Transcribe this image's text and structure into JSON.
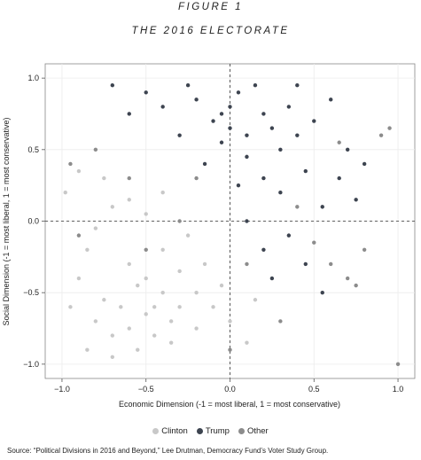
{
  "figure": {
    "label": "FIGURE 1",
    "title": "THE 2016 ELECTORATE",
    "source": "Source: “Political Divisions in 2016 and Beyond,” Lee Drutman, Democracy Fund’s Voter Study Group."
  },
  "chart_data": {
    "type": "scatter",
    "title": "THE 2016 ELECTORATE",
    "xlabel": "Economic Dimension (-1 = most liberal, 1 = most conservative)",
    "ylabel": "Social Dimension (-1 = most liberal, 1 = most conservative)",
    "xlim": [
      -1.1,
      1.1
    ],
    "ylim": [
      -1.1,
      1.1
    ],
    "xticks": [
      -1.0,
      -0.5,
      0.0,
      0.5,
      1.0
    ],
    "yticks": [
      -1.0,
      -0.5,
      0.0,
      0.5,
      1.0
    ],
    "xtick_labels": [
      "−1.0",
      "−0.5",
      "0.0",
      "0.5",
      "1.0"
    ],
    "ytick_labels": [
      "−1.0",
      "−0.5",
      "0.0",
      "0.5",
      "1.0"
    ],
    "reference_lines": {
      "x": 0,
      "y": 0,
      "style": "dashed"
    },
    "grid": true,
    "legend_position": "bottom",
    "series": [
      {
        "name": "Clinton",
        "color": "#c8c8c8",
        "points": [
          [
            -0.85,
            -0.9
          ],
          [
            -0.8,
            -0.7
          ],
          [
            -0.75,
            -0.55
          ],
          [
            -0.7,
            -0.8
          ],
          [
            -0.65,
            -0.6
          ],
          [
            -0.6,
            -0.75
          ],
          [
            -0.55,
            -0.9
          ],
          [
            -0.5,
            -0.65
          ],
          [
            -0.45,
            -0.8
          ],
          [
            -0.4,
            -0.5
          ],
          [
            -0.35,
            -0.7
          ],
          [
            -0.3,
            -0.6
          ],
          [
            -0.9,
            -0.4
          ],
          [
            -0.85,
            -0.2
          ],
          [
            -0.8,
            -0.05
          ],
          [
            -0.7,
            0.1
          ],
          [
            -0.6,
            -0.3
          ],
          [
            -0.5,
            -0.4
          ],
          [
            -0.4,
            -0.2
          ],
          [
            -0.3,
            -0.35
          ],
          [
            -0.2,
            -0.5
          ],
          [
            -0.1,
            -0.6
          ],
          [
            0.0,
            -0.7
          ],
          [
            0.1,
            -0.85
          ],
          [
            -0.95,
            -0.6
          ],
          [
            -0.98,
            0.2
          ],
          [
            -0.9,
            0.35
          ],
          [
            -0.75,
            0.3
          ],
          [
            -0.6,
            0.15
          ],
          [
            -0.5,
            0.05
          ],
          [
            -0.4,
            0.2
          ],
          [
            -0.25,
            -0.1
          ],
          [
            -0.15,
            -0.3
          ],
          [
            -0.05,
            -0.45
          ],
          [
            0.15,
            -0.55
          ],
          [
            -0.7,
            -0.95
          ],
          [
            -0.55,
            -0.45
          ],
          [
            -0.45,
            -0.6
          ],
          [
            -0.35,
            -0.85
          ],
          [
            -0.2,
            -0.75
          ]
        ]
      },
      {
        "name": "Trump",
        "color": "#3d4450",
        "points": [
          [
            0.0,
            0.8
          ],
          [
            0.1,
            0.6
          ],
          [
            0.2,
            0.75
          ],
          [
            0.3,
            0.5
          ],
          [
            0.05,
            0.9
          ],
          [
            -0.1,
            0.7
          ],
          [
            -0.2,
            0.85
          ],
          [
            0.15,
            0.95
          ],
          [
            0.25,
            0.65
          ],
          [
            0.35,
            0.8
          ],
          [
            -0.05,
            0.55
          ],
          [
            0.1,
            0.45
          ],
          [
            0.4,
            0.6
          ],
          [
            0.5,
            0.7
          ],
          [
            -0.3,
            0.6
          ],
          [
            -0.4,
            0.8
          ],
          [
            -0.5,
            0.9
          ],
          [
            0.6,
            0.85
          ],
          [
            0.2,
            0.3
          ],
          [
            0.3,
            0.2
          ],
          [
            0.45,
            0.35
          ],
          [
            0.55,
            0.1
          ],
          [
            0.05,
            0.25
          ],
          [
            -0.15,
            0.4
          ],
          [
            0.7,
            0.5
          ],
          [
            0.8,
            0.4
          ],
          [
            0.35,
            -0.1
          ],
          [
            0.45,
            -0.3
          ],
          [
            0.55,
            -0.5
          ],
          [
            0.25,
            -0.4
          ],
          [
            -0.6,
            0.75
          ],
          [
            -0.7,
            0.95
          ],
          [
            0.1,
            0.0
          ],
          [
            0.2,
            -0.2
          ],
          [
            0.0,
            0.65
          ],
          [
            -0.25,
            0.95
          ],
          [
            0.65,
            0.3
          ],
          [
            0.75,
            0.15
          ],
          [
            0.4,
            0.95
          ],
          [
            -0.05,
            0.75
          ]
        ]
      },
      {
        "name": "Other",
        "color": "#8c8c8c",
        "points": [
          [
            -0.95,
            0.4
          ],
          [
            -0.8,
            0.5
          ],
          [
            -0.6,
            0.3
          ],
          [
            0.6,
            -0.3
          ],
          [
            0.7,
            -0.4
          ],
          [
            0.75,
            -0.45
          ],
          [
            0.9,
            0.6
          ],
          [
            0.95,
            0.65
          ],
          [
            1.0,
            -1.0
          ],
          [
            0.3,
            -0.7
          ],
          [
            -0.3,
            0.0
          ],
          [
            0.1,
            -0.3
          ],
          [
            0.5,
            -0.15
          ],
          [
            -0.5,
            -0.2
          ],
          [
            0.4,
            0.1
          ],
          [
            0.8,
            -0.2
          ],
          [
            -0.9,
            -0.1
          ],
          [
            0.0,
            -0.9
          ],
          [
            -0.2,
            0.3
          ],
          [
            0.65,
            0.55
          ]
        ]
      }
    ]
  },
  "legend": {
    "items": [
      {
        "label": "Clinton",
        "color": "#c8c8c8"
      },
      {
        "label": "Trump",
        "color": "#3d4450"
      },
      {
        "label": "Other",
        "color": "#8c8c8c"
      }
    ]
  }
}
